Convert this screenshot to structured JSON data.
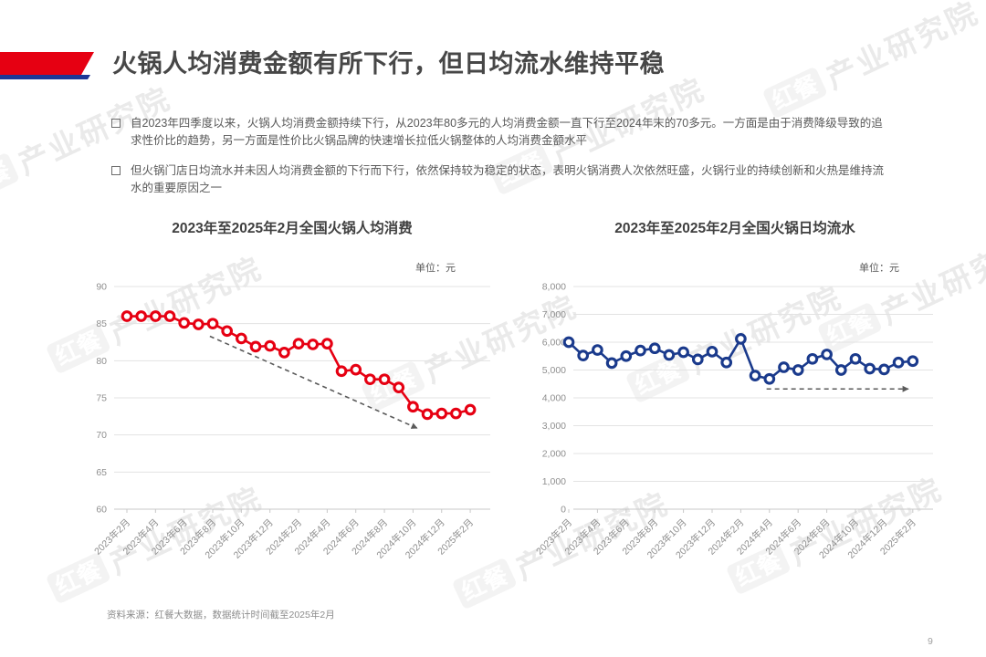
{
  "page": {
    "title": "火锅人均消费金额有所下行，但日均流水维持平稳",
    "bullets": [
      "自2023年四季度以来，火锅人均消费金额持续下行，从2023年80多元的人均消费金额一直下行至2024年末的70多元。一方面是由于消费降级导致的追求性价比的趋势，另一方面是性价比火锅品牌的快速增长拉低火锅整体的人均消费金额水平",
      "但火锅门店日均流水并未因人均消费金额的下行而下行，依然保持较为稳定的状态，表明火锅消费人次依然旺盛，火锅行业的持续创新和火热是维持流水的重要原因之一"
    ],
    "source_note": "资料来源：红餐大数据，数据统计时间截至2025年2月",
    "page_number": "9",
    "watermark_brand": "红餐",
    "watermark_name": "产业研究院",
    "accent_red": "#e60012",
    "accent_blue": "#1e3796"
  },
  "chart_data": [
    {
      "type": "line",
      "title": "2023年至2025年2月全国火锅人均消费",
      "unit_label": "单位：元",
      "color": "#e60012",
      "legend": "none",
      "grid": true,
      "ylim": [
        60,
        90
      ],
      "yticks": [
        90,
        85,
        80,
        75,
        70,
        65,
        60
      ],
      "ytick_labels": [
        "90",
        "85",
        "80",
        "75",
        "70",
        "65",
        "60"
      ],
      "x": [
        "2023年2月",
        "2023年3月",
        "2023年4月",
        "2023年5月",
        "2023年6月",
        "2023年7月",
        "2023年8月",
        "2023年9月",
        "2023年10月",
        "2023年11月",
        "2023年12月",
        "2024年1月",
        "2024年2月",
        "2024年3月",
        "2024年4月",
        "2024年5月",
        "2024年6月",
        "2024年7月",
        "2024年8月",
        "2024年9月",
        "2024年10月",
        "2024年11月",
        "2024年12月",
        "2025年1月",
        "2025年2月"
      ],
      "xtick_every": 2,
      "values": [
        86,
        86,
        86,
        86,
        85.1,
        84.9,
        85,
        84,
        83,
        81.9,
        82,
        81.1,
        82.3,
        82.2,
        82.3,
        78.6,
        78.8,
        77.5,
        77.5,
        76.4,
        73.8,
        72.8,
        72.9,
        72.9,
        73.4
      ],
      "trend_arrow": {
        "x1": 5.8,
        "v1": 83.3,
        "x2": 20.3,
        "v2": 70.9
      }
    },
    {
      "type": "line",
      "title": "2023年至2025年2月全国火锅日均流水",
      "unit_label": "单位：元",
      "color": "#1a3a8c",
      "legend": "none",
      "grid": true,
      "ylim": [
        0,
        8000
      ],
      "yticks": [
        8000,
        7000,
        6000,
        5000,
        4000,
        3000,
        2000,
        1000,
        0
      ],
      "ytick_labels": [
        "8,000",
        "7,000",
        "6,000",
        "5,000",
        "4,000",
        "3,000",
        "2,000",
        "1,000",
        "0"
      ],
      "x": [
        "2023年2月",
        "2023年3月",
        "2023年4月",
        "2023年5月",
        "2023年6月",
        "2023年7月",
        "2023年8月",
        "2023年9月",
        "2023年10月",
        "2023年11月",
        "2023年12月",
        "2024年1月",
        "2024年2月",
        "2024年3月",
        "2024年4月",
        "2024年5月",
        "2024年6月",
        "2024年7月",
        "2024年8月",
        "2024年9月",
        "2024年10月",
        "2024年11月",
        "2024年12月",
        "2025年1月",
        "2025年2月"
      ],
      "xtick_every": 2,
      "values": [
        6000,
        5520,
        5720,
        5250,
        5500,
        5700,
        5780,
        5540,
        5640,
        5380,
        5660,
        5270,
        6120,
        4800,
        4680,
        5100,
        5000,
        5400,
        5560,
        5000,
        5400,
        5050,
        5020,
        5270,
        5320
      ],
      "trend_arrow": {
        "x1": 13.8,
        "v1": 4320,
        "x2": 23.7,
        "v2": 4320
      }
    }
  ]
}
